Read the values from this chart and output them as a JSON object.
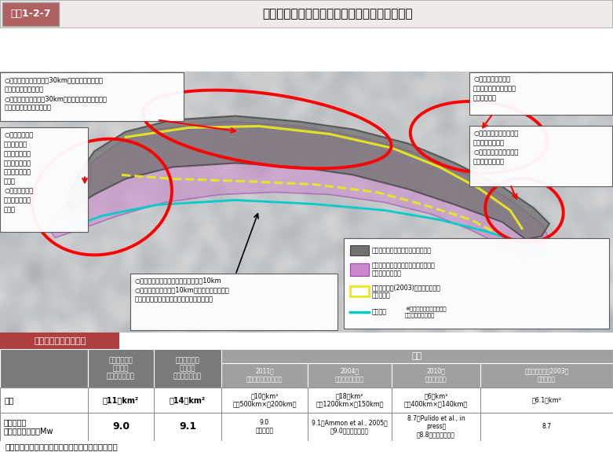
{
  "title_tag": "図表1-2-7",
  "title_text": "南海トラフの巨大地震の新たな想定震源断層域",
  "title_tag_bg": "#b06060",
  "title_bg": "#f0ebe8",
  "section_header_text": "地震の規模（確定値）",
  "section_header_bg": "#b04040",
  "col_headers_main": [
    "南海トラフの\n巨大地震\n（強震断層域）",
    "南海トラフの\n巨大地震\n（津波断層域）"
  ],
  "col_headers_ref": [
    "2011年\n東北地方太平洋沖地震",
    "2004年\nスマトラ島沖地震",
    "2010年\nチリ中部地震",
    "中央防災会議（2003）\n強震断層域"
  ],
  "row_area_label": "面積",
  "row_area_main": [
    "約11万km²",
    "約14万km²"
  ],
  "row_area_ref": [
    "約10万km²\n（約500km×約200km）",
    "約18万km²\n（約1200km×約150km）",
    "約6万km²\n（約400km×約140km）",
    "約6.1万km²"
  ],
  "row_mw_label": "モーメント\nマグニチュード　Mw",
  "row_mw_main": [
    "9.0",
    "9.1"
  ],
  "row_mw_ref": [
    "9.0\n（気象庁）",
    "9.1（Ammon et al., 2005）\n［9.0（理科年表）］",
    "8.7（Pulido et al., in\npress）\n［8.8（理科年表）］",
    "8.7"
  ],
  "header_dark_bg": "#7a7a7a",
  "header_ref_bg": "#a0a0a0",
  "source": "出典：「南海トラフの巨大地震モデル検討会」資料",
  "ann_topleft": "○プレート境界面深さ約30kmから深部低周波地震\n　が発生している領域\n○プレート境界面深さ30kmの位置を修正し，内陸側\n　のさらに深い方に広がる",
  "ann_left": "○九州・パラオ\n　海嶺付近で\n　フィリピン海\n　プレートが厚\n　くなっている\n　領域\n○日向灘北部か\n　ら南西方向に\n　拡大",
  "ann_topright": "○震源分布から見て\nプレートの形状が明瞭で\nなくなる領域",
  "ann_right": "○トラフ軸から富士川河\n　口断層帯の北端\n○富士川河口断層帯の領\n　域も対象とする",
  "ann_bottom": "○強震断層域：プレート境界面深さ約10km\n○津波断層域：深さ約10kmからトラフ軸までの\n　領域に津波地震を引き起こすすべりを設定",
  "legend_gray_label": "強震断層域（津波断層域の主断層）",
  "legend_pink_label": "津波地震を検討する領域（津波断層域\nに追加する領域）",
  "legend_yellow_label": "中央防災会議(2003)の強震断層域、\n津波断層域",
  "legend_cyan_label": "トラフ軸",
  "legend_note": "※海底地形図は海上保安庁\n　提供データによる",
  "color_gray": "#686868",
  "color_pink": "#e0a0e0",
  "color_yellow": "#e8e820",
  "color_cyan": "#00cccc",
  "map_ocean": "#c8cfd8",
  "map_land": "#b8b8b8"
}
